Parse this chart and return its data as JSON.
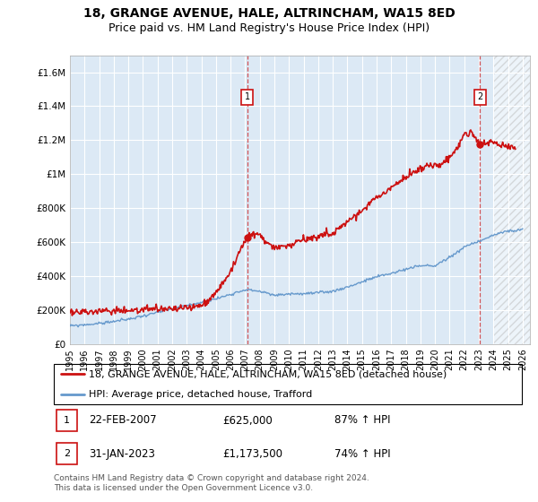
{
  "title1": "18, GRANGE AVENUE, HALE, ALTRINCHAM, WA15 8ED",
  "title2": "Price paid vs. HM Land Registry's House Price Index (HPI)",
  "title1_fontsize": 10,
  "title2_fontsize": 9,
  "bg_color": "#dce9f5",
  "line1_color": "#cc1111",
  "line2_color": "#6699cc",
  "grid_color": "#ffffff",
  "annotation_box_color": "#cc1111",
  "ylim": [
    0,
    1700000
  ],
  "yticks": [
    0,
    200000,
    400000,
    600000,
    800000,
    1000000,
    1200000,
    1400000,
    1600000
  ],
  "ytick_labels": [
    "£0",
    "£200K",
    "£400K",
    "£600K",
    "£800K",
    "£1M",
    "£1.2M",
    "£1.4M",
    "£1.6M"
  ],
  "legend_label1": "18, GRANGE AVENUE, HALE, ALTRINCHAM, WA15 8ED (detached house)",
  "legend_label2": "HPI: Average price, detached house, Trafford",
  "marker1_x": 2007.13,
  "marker1_y": 625000,
  "marker2_x": 2023.08,
  "marker2_y": 1173500,
  "footer": "Contains HM Land Registry data © Crown copyright and database right 2024.\nThis data is licensed under the Open Government Licence v3.0.",
  "xmin": 1995.0,
  "xmax": 2026.5,
  "hatch_start": 2024.0
}
